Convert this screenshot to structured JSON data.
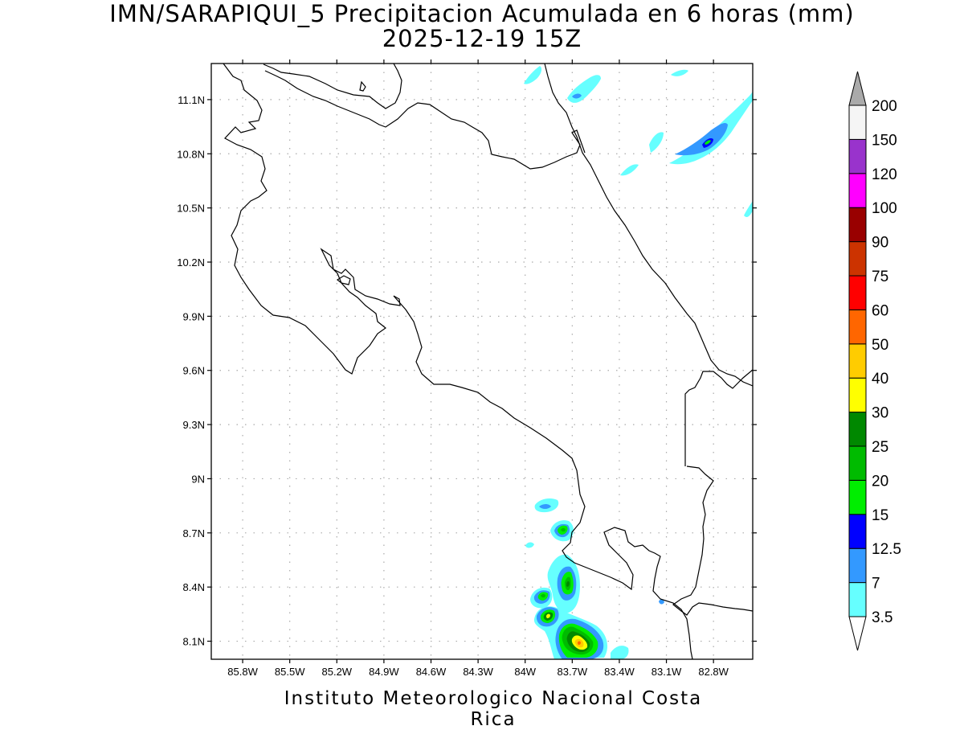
{
  "title": {
    "line1": "IMN/SARAPIQUI_5 Precipitacion Acumulada en 6 horas (mm)",
    "line2": "2025-12-19 15Z"
  },
  "map": {
    "lon_range": [
      -86.0,
      -82.55
    ],
    "lat_range": [
      8.0,
      11.3
    ],
    "lat_ticks": [
      {
        "value": 11.1,
        "label": "11.1N"
      },
      {
        "value": 10.8,
        "label": "10.8N"
      },
      {
        "value": 10.5,
        "label": "10.5N"
      },
      {
        "value": 10.2,
        "label": "10.2N"
      },
      {
        "value": 9.9,
        "label": "9.9N"
      },
      {
        "value": 9.6,
        "label": "9.6N"
      },
      {
        "value": 9.3,
        "label": "9.3N"
      },
      {
        "value": 9.0,
        "label": "9N"
      },
      {
        "value": 8.7,
        "label": "8.7N"
      },
      {
        "value": 8.4,
        "label": "8.4N"
      },
      {
        "value": 8.1,
        "label": "8.1N"
      }
    ],
    "lon_ticks": [
      {
        "value": -85.8,
        "label": "85.8W"
      },
      {
        "value": -85.5,
        "label": "85.5W"
      },
      {
        "value": -85.2,
        "label": "85.2W"
      },
      {
        "value": -84.9,
        "label": "84.9W"
      },
      {
        "value": -84.6,
        "label": "84.6W"
      },
      {
        "value": -84.3,
        "label": "84.3W"
      },
      {
        "value": -84.0,
        "label": "84W"
      },
      {
        "value": -83.7,
        "label": "83.7W"
      },
      {
        "value": -83.4,
        "label": "83.4W"
      },
      {
        "value": -83.1,
        "label": "83.1W"
      },
      {
        "value": -82.8,
        "label": "82.8W"
      }
    ],
    "grid": true
  },
  "colorbar": {
    "levels": [
      "3.5",
      "7",
      "12.5",
      "15",
      "20",
      "25",
      "30",
      "40",
      "50",
      "60",
      "75",
      "90",
      "100",
      "120",
      "150",
      "200"
    ],
    "colors": [
      "#66ffff",
      "#3399ff",
      "#0000ff",
      "#00ee00",
      "#00bb00",
      "#008800",
      "#ffff00",
      "#ffcc00",
      "#ff6600",
      "#ff0000",
      "#cc3300",
      "#990000",
      "#ff00ff",
      "#9933cc",
      "#f5f5f5"
    ],
    "over_color": "#aaaaaa",
    "under_color": "#ffffff"
  },
  "footer": "Instituto Meteorologico Nacional Costa Rica"
}
